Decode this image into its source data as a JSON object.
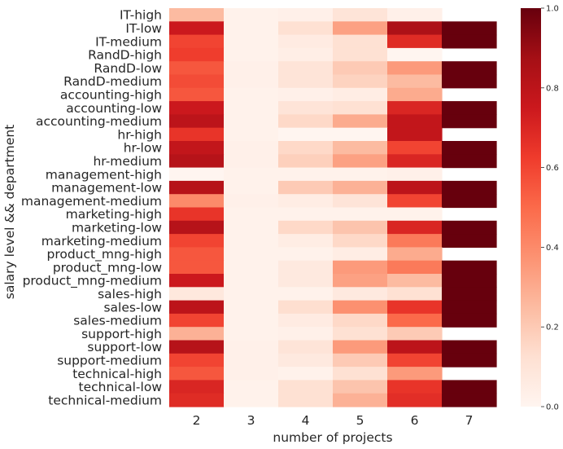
{
  "chart_data": {
    "type": "heatmap",
    "xlabel": "number of projects",
    "ylabel": "salary level && department",
    "x": [
      "2",
      "3",
      "4",
      "5",
      "6",
      "7"
    ],
    "y": [
      "IT-high",
      "IT-low",
      "IT-medium",
      "RandD-high",
      "RandD-low",
      "RandD-medium",
      "accounting-high",
      "accounting-low",
      "accounting-medium",
      "hr-high",
      "hr-low",
      "hr-medium",
      "management-high",
      "management-low",
      "management-medium",
      "marketing-high",
      "marketing-low",
      "marketing-medium",
      "product_mng-high",
      "product_mng-low",
      "product_mng-medium",
      "sales-high",
      "sales-low",
      "sales-medium",
      "support-high",
      "support-low",
      "support-medium",
      "technical-high",
      "technical-low",
      "technical-medium"
    ],
    "values": [
      [
        0.25,
        0.02,
        0.03,
        0.1,
        0.03,
        null
      ],
      [
        0.75,
        0.02,
        0.12,
        0.33,
        0.85,
        1.0
      ],
      [
        0.6,
        0.02,
        0.06,
        0.12,
        0.68,
        1.0
      ],
      [
        0.62,
        0.02,
        0.04,
        0.12,
        0.0,
        null
      ],
      [
        0.55,
        0.03,
        0.1,
        0.2,
        0.35,
        1.0
      ],
      [
        0.58,
        0.03,
        0.1,
        0.17,
        0.25,
        1.0
      ],
      [
        0.55,
        0.02,
        0.03,
        0.05,
        0.3,
        null
      ],
      [
        0.75,
        0.02,
        0.1,
        0.12,
        0.7,
        1.0
      ],
      [
        0.8,
        0.02,
        0.15,
        0.3,
        0.78,
        1.0
      ],
      [
        0.65,
        0.02,
        0.0,
        0.0,
        0.78,
        null
      ],
      [
        0.78,
        0.03,
        0.15,
        0.25,
        0.6,
        1.0
      ],
      [
        0.82,
        0.03,
        0.18,
        0.33,
        0.7,
        1.0
      ],
      [
        0.0,
        0.02,
        0.02,
        0.02,
        0.03,
        null
      ],
      [
        0.82,
        0.02,
        0.2,
        0.28,
        0.8,
        1.0
      ],
      [
        0.4,
        0.03,
        0.05,
        0.1,
        0.6,
        1.0
      ],
      [
        0.65,
        0.02,
        0.02,
        0.02,
        0.02,
        null
      ],
      [
        0.82,
        0.02,
        0.15,
        0.22,
        0.7,
        1.0
      ],
      [
        0.6,
        0.02,
        0.05,
        0.15,
        0.45,
        1.0
      ],
      [
        0.55,
        0.02,
        0.02,
        0.05,
        0.3,
        null
      ],
      [
        0.55,
        0.02,
        0.07,
        0.35,
        0.45,
        1.0
      ],
      [
        0.75,
        0.02,
        0.07,
        0.33,
        0.25,
        1.0
      ],
      [
        0.08,
        0.02,
        0.02,
        0.07,
        0.12,
        1.0
      ],
      [
        0.8,
        0.02,
        0.13,
        0.38,
        0.65,
        1.0
      ],
      [
        0.6,
        0.02,
        0.06,
        0.15,
        0.5,
        1.0
      ],
      [
        0.28,
        0.02,
        0.03,
        0.12,
        0.2,
        null
      ],
      [
        0.82,
        0.03,
        0.1,
        0.35,
        0.8,
        1.0
      ],
      [
        0.6,
        0.03,
        0.07,
        0.2,
        0.6,
        1.0
      ],
      [
        0.55,
        0.03,
        0.02,
        0.12,
        0.35,
        null
      ],
      [
        0.7,
        0.02,
        0.12,
        0.22,
        0.65,
        1.0
      ],
      [
        0.68,
        0.02,
        0.12,
        0.28,
        0.67,
        1.0
      ]
    ],
    "colorbar": {
      "range": [
        0.0,
        1.0
      ],
      "ticks": [
        "0.0",
        "0.2",
        "0.4",
        "0.6",
        "0.8",
        "1.0"
      ],
      "colormap": "Reds"
    },
    "grid": false
  }
}
